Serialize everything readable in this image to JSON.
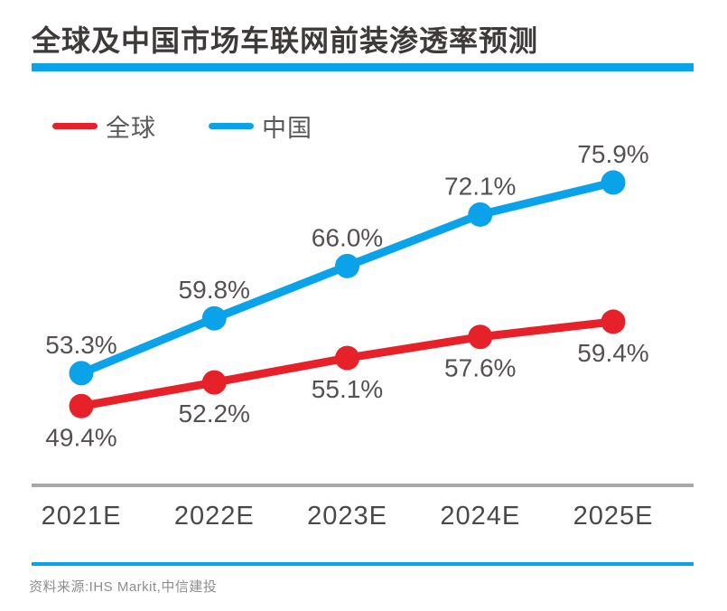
{
  "header": {
    "title": "全球及中国市场车联网前装渗透率预测"
  },
  "colors": {
    "accent_blue": "#0aa2e8",
    "accent_red": "#e7212a",
    "axis_gray": "#a8a8a8",
    "title_ink": "#3e3a39",
    "label_gray": "#555152",
    "source_gray": "#8f8e8e"
  },
  "chart_data": {
    "type": "line",
    "title": "全球及中国市场车联网前装渗透率预测",
    "categories": [
      "2021E",
      "2022E",
      "2023E",
      "2024E",
      "2025E"
    ],
    "series": [
      {
        "name": "全球",
        "key": "global",
        "color": "#e7212a",
        "values": [
          49.4,
          52.2,
          55.1,
          57.6,
          59.4
        ],
        "labels": [
          "49.4%",
          "52.2%",
          "55.1%",
          "57.6%",
          "59.4%"
        ],
        "label_position": "below"
      },
      {
        "name": "中国",
        "key": "china",
        "color": "#0aa2e8",
        "values": [
          53.3,
          59.8,
          66.0,
          72.1,
          75.9
        ],
        "labels": [
          "53.3%",
          "59.8%",
          "66.0%",
          "72.1%",
          "75.9%"
        ],
        "label_position": "above"
      }
    ],
    "xlabel": "",
    "ylabel": "",
    "ylim": [
      40,
      82
    ],
    "unit": "%",
    "grid": false,
    "legend_position": "top-left"
  },
  "source": {
    "text": "资料来源:IHS Markit,中信建投"
  }
}
